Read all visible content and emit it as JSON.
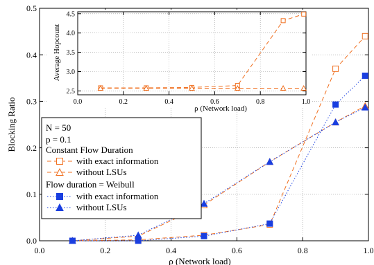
{
  "chart_data": [
    {
      "type": "line",
      "xlabel": "ρ (Network load)",
      "ylabel": "Blocking Ratio",
      "xlim": [
        0.0,
        1.0
      ],
      "ylim": [
        0.0,
        0.5
      ],
      "xticks": [
        "0.0",
        "0.2",
        "0.4",
        "0.6",
        "0.8",
        "1.0"
      ],
      "yticks": [
        "0.0",
        "0.1",
        "0.2",
        "0.3",
        "0.4",
        "0.5"
      ],
      "legend_placement": "middle-left",
      "legend_lines": [
        "N = 50",
        "p = 0.1"
      ],
      "groups": [
        {
          "label": "Constant Flow Duration",
          "series_names": [
            "with exact information",
            "without LSUs"
          ]
        },
        {
          "label": "Flow duration = Weibull",
          "series_names": [
            "with exact information",
            "without LSUs"
          ]
        }
      ],
      "series": [
        {
          "name": "with exact information",
          "group": "Constant Flow Duration",
          "marker": "open-square",
          "line": "dashed",
          "color": "#f07020",
          "x": [
            0.1,
            0.3,
            0.5,
            0.7,
            0.9,
            0.99
          ],
          "y": [
            0.0,
            0.002,
            0.012,
            0.035,
            0.37,
            0.44
          ]
        },
        {
          "name": "without LSUs",
          "group": "Constant Flow Duration",
          "marker": "open-triangle",
          "line": "dashed",
          "color": "#f07020",
          "x": [
            0.1,
            0.3,
            0.5,
            0.7,
            0.9,
            0.99
          ],
          "y": [
            0.0,
            0.01,
            0.077,
            0.17,
            0.255,
            0.29
          ]
        },
        {
          "name": "with exact information",
          "group": "Flow duration = Weibull",
          "marker": "filled-square",
          "line": "dotted",
          "color": "#1a3fe0",
          "x": [
            0.1,
            0.3,
            0.5,
            0.7,
            0.9,
            0.99
          ],
          "y": [
            0.0,
            0.0,
            0.01,
            0.037,
            0.293,
            0.355
          ]
        },
        {
          "name": "without LSUs",
          "group": "Flow duration = Weibull",
          "marker": "filled-triangle",
          "line": "dotted",
          "color": "#1a3fe0",
          "x": [
            0.1,
            0.3,
            0.5,
            0.7,
            0.9,
            0.99
          ],
          "y": [
            0.0,
            0.012,
            0.08,
            0.17,
            0.255,
            0.287
          ]
        }
      ]
    },
    {
      "type": "line",
      "xlabel": "ρ (Network load)",
      "ylabel": "Average Hopcount",
      "xlim": [
        0.0,
        1.0
      ],
      "ylim": [
        2.4,
        4.55
      ],
      "xticks": [
        "0.0",
        "0.2",
        "0.4",
        "0.6",
        "0.8",
        "1.0"
      ],
      "yticks": [
        "2.5",
        "3.0",
        "3.5",
        "4.0",
        "4.5"
      ],
      "series": [
        {
          "name": "with exact information",
          "marker": "open-square",
          "line": "dashed",
          "color": "#f07020",
          "x": [
            0.1,
            0.3,
            0.5,
            0.7,
            0.9,
            0.99
          ],
          "y": [
            2.58,
            2.58,
            2.59,
            2.64,
            4.32,
            4.49
          ]
        },
        {
          "name": "without LSUs",
          "marker": "open-triangle",
          "line": "dashed",
          "color": "#f07020",
          "x": [
            0.1,
            0.3,
            0.5,
            0.7,
            0.9,
            0.99
          ],
          "y": [
            2.57,
            2.57,
            2.57,
            2.57,
            2.57,
            2.57
          ]
        }
      ]
    }
  ]
}
